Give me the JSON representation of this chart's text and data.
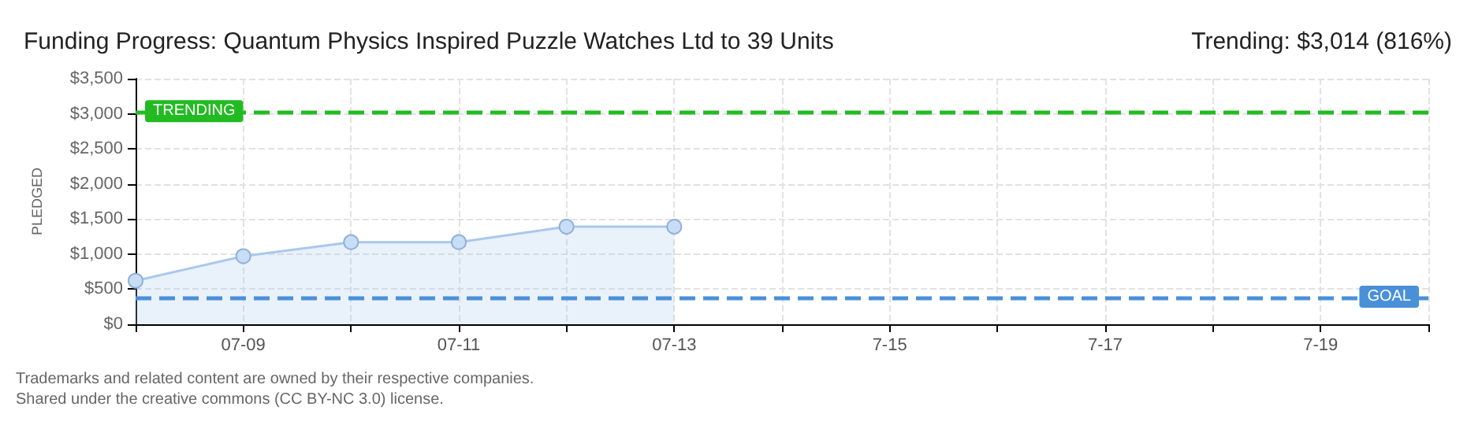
{
  "chart_data": {
    "type": "area",
    "title": "Funding Progress: Quantum Physics Inspired Puzzle Watches Ltd to 39 Units",
    "subtitle": "Trending: $3,014 (816%)",
    "ylabel": "PLEDGED",
    "categories": [
      null,
      "07-09",
      null,
      "07-11",
      null,
      "07-13",
      null,
      "7-15",
      null,
      "7-17",
      null,
      "7-19",
      null
    ],
    "series": [
      {
        "color": "#a9c8ee",
        "values": [
          620,
          970,
          1170,
          1170,
          1390,
          1390,
          null,
          null,
          null,
          null,
          null,
          null,
          null
        ]
      }
    ],
    "ylim": [
      0,
      3500
    ],
    "yticks": [
      {
        "value": 0,
        "label": "$0"
      },
      {
        "value": 500,
        "label": "$500"
      },
      {
        "value": 1000,
        "label": "$1,000"
      },
      {
        "value": 1500,
        "label": "$1,500"
      },
      {
        "value": 2000,
        "label": "$2,000"
      },
      {
        "value": 2500,
        "label": "$2,500"
      },
      {
        "value": 3000,
        "label": "$3,000"
      },
      {
        "value": 3500,
        "label": "$3,500"
      }
    ],
    "ref_lines": [
      {
        "axis": "y",
        "value": 3014,
        "label": "TRENDING",
        "color": "#22bb22",
        "line_style": "dashed"
      },
      {
        "axis": "y",
        "value": 370,
        "label": "GOAL",
        "color": "#4a90d9",
        "line_style": "dashed"
      }
    ],
    "annotations": [
      "Trademarks and related content are owned by their respective companies.",
      "Shared under the creative commons (CC BY-NC 3.0) license."
    ],
    "grid": true,
    "marker": "circle",
    "line_style": "solid"
  }
}
